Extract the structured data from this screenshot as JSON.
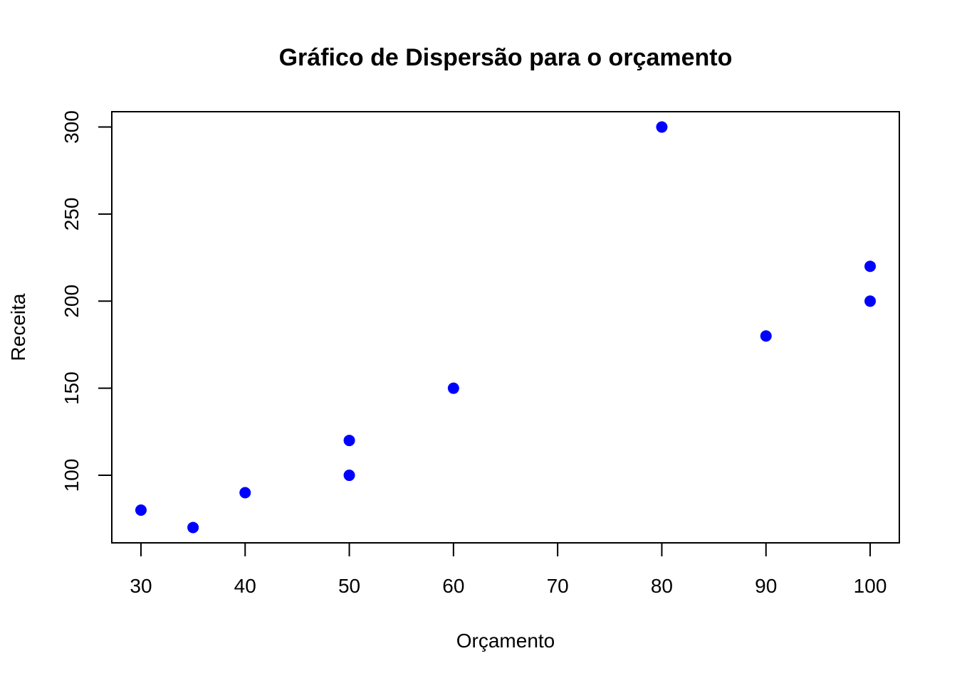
{
  "chart_data": {
    "type": "scatter",
    "title": "Gráfico de Dispersão para o orçamento",
    "xlabel": "Orçamento",
    "ylabel": "Receita",
    "xlim": [
      27.2,
      102.8
    ],
    "ylim": [
      61.2,
      308.8
    ],
    "xticks": [
      30,
      40,
      50,
      60,
      70,
      80,
      90,
      100
    ],
    "yticks": [
      100,
      150,
      200,
      250,
      300
    ],
    "grid": false,
    "point_color": "#0000ff",
    "points": [
      {
        "x": 30,
        "y": 80
      },
      {
        "x": 35,
        "y": 70
      },
      {
        "x": 40,
        "y": 90
      },
      {
        "x": 50,
        "y": 100
      },
      {
        "x": 50,
        "y": 120
      },
      {
        "x": 60,
        "y": 150
      },
      {
        "x": 80,
        "y": 300
      },
      {
        "x": 90,
        "y": 180
      },
      {
        "x": 100,
        "y": 200
      },
      {
        "x": 100,
        "y": 220
      }
    ]
  }
}
